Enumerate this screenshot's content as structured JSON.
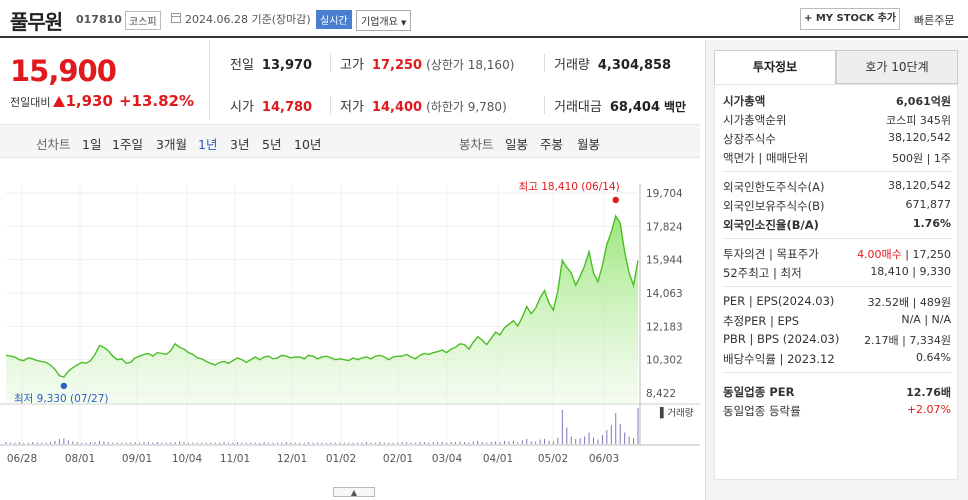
{
  "header": {
    "name": "풀무원",
    "code": "017810",
    "market": "코스피",
    "date": "2024.06.28",
    "basis": "기준(장마감)",
    "realtime": "실시간",
    "company_overview": "기업개요",
    "mystock": "+ MY STOCK 추가",
    "fast_order": "빠른주문"
  },
  "price": {
    "current": "15,900",
    "change_label": "전일대비",
    "change_amount": "1,930",
    "change_pct": "+13.82%"
  },
  "quotes": {
    "prev_label": "전일",
    "prev": "13,970",
    "high_label": "고가",
    "high": "17,250",
    "upper_limit": "(상한가 18,160)",
    "volume_label": "거래량",
    "volume": "4,304,858",
    "open_label": "시가",
    "open": "14,780",
    "low_label": "저가",
    "low": "14,400",
    "lower_limit": "(하한가 9,780)",
    "amount_label": "거래대금",
    "amount": "68,404",
    "amount_unit": "백만"
  },
  "periods": {
    "line_label": "선차트",
    "line": [
      "1일",
      "1주일",
      "3개월",
      "1년",
      "3년",
      "5년",
      "10년"
    ],
    "active": "1년",
    "candle_label": "봉차트",
    "candle": [
      "일봉",
      "주봉",
      "월봉"
    ]
  },
  "chart_data": {
    "type": "area",
    "y_ticks": [
      "19,704",
      "17,824",
      "15,944",
      "14,063",
      "12,183",
      "10,302",
      "8,422"
    ],
    "ylim": [
      8422,
      19704
    ],
    "x_ticks": [
      "06/28",
      "08/01",
      "09/01",
      "10/04",
      "11/01",
      "12/01",
      "01/02",
      "02/01",
      "03/04",
      "04/01",
      "05/02",
      "06/03"
    ],
    "max_label": "최고 18,410 (06/14)",
    "min_label": "최저 9,330 (07/27)",
    "volume_label": "거래량",
    "grid": true,
    "series": [
      {
        "values": [
          10550,
          10500,
          10450,
          10300,
          10250,
          10400,
          10350,
          10250,
          10200,
          10150,
          10000,
          9750,
          9400,
          9330,
          9650,
          9850,
          10000,
          10150,
          10100,
          10250,
          10600,
          11100,
          11000,
          10800,
          10500,
          10300,
          10350,
          10100,
          10150,
          10400,
          10500,
          10600,
          10650,
          10500,
          10700,
          10650,
          10600,
          10800,
          11200,
          11000,
          10900,
          10700,
          10600,
          10400,
          10350,
          10200,
          10100,
          10000,
          10150,
          10200,
          10100,
          10250,
          10400,
          10300,
          10150,
          10300,
          10450,
          10300,
          10450,
          10500,
          10350,
          10400,
          10550,
          10500,
          10400,
          10450,
          10450,
          10350,
          10550,
          10500,
          10350,
          10450,
          10500,
          10400,
          10300,
          10350,
          10300,
          10250,
          10400,
          10300,
          10400,
          10450,
          10350,
          10500,
          10550,
          10450,
          10300,
          10450,
          10500,
          10500,
          10600,
          10450,
          10350,
          10550,
          10650,
          10600,
          10700,
          10750,
          10850,
          10700,
          10900,
          11000,
          11200,
          11150,
          10900,
          11300,
          11600,
          11400,
          11150,
          11500,
          11850,
          11700,
          12100,
          12300,
          12500,
          12200,
          12700,
          13300,
          12900,
          13200,
          13800,
          14200,
          13500,
          13100,
          14200,
          15900,
          15500,
          15200,
          14500,
          15000,
          15600,
          16400,
          15200,
          14700,
          15600,
          16800,
          17500,
          18410,
          18000,
          16400,
          15200,
          14500,
          15900
        ],
        "volume": [
          3,
          2,
          2,
          3,
          2,
          2,
          3,
          2,
          2,
          2,
          3,
          5,
          8,
          9,
          6,
          4,
          3,
          2,
          2,
          3,
          3,
          5,
          4,
          3,
          2,
          2,
          2,
          2,
          2,
          3,
          2,
          3,
          3,
          2,
          3,
          2,
          2,
          2,
          3,
          4,
          3,
          2,
          2,
          2,
          2,
          2,
          2,
          2,
          2,
          3,
          2,
          2,
          3,
          2,
          2,
          2,
          2,
          2,
          3,
          2,
          2,
          2,
          2,
          3,
          2,
          2,
          2,
          2,
          3,
          2,
          2,
          2,
          2,
          2,
          2,
          2,
          2,
          2,
          2,
          2,
          2,
          3,
          2,
          2,
          3,
          2,
          2,
          2,
          2,
          3,
          3,
          2,
          2,
          3,
          3,
          2,
          3,
          3,
          3,
          2,
          3,
          3,
          4,
          3,
          2,
          4,
          5,
          3,
          2,
          3,
          4,
          3,
          5,
          4,
          5,
          3,
          6,
          8,
          4,
          4,
          7,
          8,
          5,
          4,
          10,
          54,
          26,
          12,
          8,
          9,
          12,
          18,
          10,
          7,
          14,
          22,
          30,
          49,
          32,
          18,
          12,
          9,
          57
        ]
      }
    ]
  },
  "side": {
    "tab_invest": "투자정보",
    "tab_hoga": "호가 10단계",
    "rows1": [
      {
        "l": "시가총액",
        "r": "6,061억원",
        "bold": true
      },
      {
        "l": "시가총액순위",
        "r": "코스피 345위"
      },
      {
        "l": "상장주식수",
        "r": "38,120,542"
      },
      {
        "l": "액면가 | 매매단위",
        "r": "500원 | 1주"
      }
    ],
    "rows2": [
      {
        "l": "외국인한도주식수(A)",
        "r": "38,120,542"
      },
      {
        "l": "외국인보유주식수(B)",
        "r": "671,877"
      },
      {
        "l": "외국인소진율(B/A)",
        "r": "1.76%",
        "bold": true
      }
    ],
    "rows3": [
      {
        "l": "투자의견 | 목표주가",
        "r1": "4.00매수",
        "r2": "| 17,250"
      },
      {
        "l": "52주최고 | 최저",
        "r": "18,410 | 9,330"
      }
    ],
    "rows4": [
      {
        "l": "PER | EPS(2024.03)",
        "r": "32.52배 | 489원"
      },
      {
        "l": "추정PER | EPS",
        "r": "N/A | N/A"
      },
      {
        "l": "PBR | BPS (2024.03)",
        "r": "2.17배 | 7,334원"
      },
      {
        "l": "배당수익률 | 2023.12",
        "r": "0.64%"
      }
    ],
    "rows5": [
      {
        "l": "동일업종 PER",
        "r": "12.76배",
        "bold": true
      },
      {
        "l": "동일업종 등락률",
        "r": "+2.07%"
      }
    ]
  }
}
